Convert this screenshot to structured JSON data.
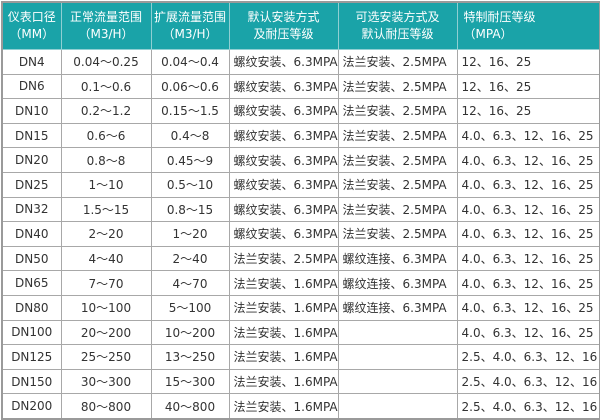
{
  "accent_color": "#1aa3a8",
  "headers": [
    [
      "仪表口径",
      "（MM）"
    ],
    [
      "正常流量范围",
      "（M3/H）"
    ],
    [
      "扩展流量范围",
      "（M3/H）"
    ],
    [
      "默认安装方式",
      "及耐压等级"
    ],
    [
      "可选安装方式及",
      "默认耐压等级"
    ],
    [
      "特制耐压等级",
      "（MPA）"
    ]
  ],
  "rows": [
    [
      "DN4",
      "0.04～0.25",
      "0.04～0.4",
      "螺纹安装、6.3MPA",
      "法兰安装、2.5MPA",
      "12、16、25"
    ],
    [
      "DN6",
      "0.1～0.6",
      "0.06～0.6",
      "螺纹安装、6.3MPA",
      "法兰安装、2.5MPA",
      "12、16、25"
    ],
    [
      "DN10",
      "0.2～1.2",
      "0.15～1.5",
      "螺纹安装、6.3MPA",
      "法兰安装、2.5MPA",
      "12、16、25"
    ],
    [
      "DN15",
      "0.6～6",
      "0.4～8",
      "螺纹安装、6.3MPA",
      "法兰安装、2.5MPA",
      "4.0、6.3、12、16、25"
    ],
    [
      "DN20",
      "0.8～8",
      "0.45～9",
      "螺纹安装、6.3MPA",
      "法兰安装、2.5MPA",
      "4.0、6.3、12、16、25"
    ],
    [
      "DN25",
      "1～10",
      "0.5～10",
      "螺纹安装、6.3MPA",
      "法兰安装、2.5MPA",
      "4.0、6.3、12、16、25"
    ],
    [
      "DN32",
      "1.5～15",
      "0.8～15",
      "螺纹安装、6.3MPA",
      "法兰安装、2.5MPA",
      "4.0、6.3、12、16、25"
    ],
    [
      "DN40",
      "2～20",
      "1～20",
      "螺纹安装、6.3MPA",
      "法兰安装、2.5MPA",
      "4.0、6.3、12、16、25"
    ],
    [
      "DN50",
      "4～40",
      "2～40",
      "法兰安装、2.5MPA",
      "螺纹连接、6.3MPA",
      "4.0、6.3、12、16、25"
    ],
    [
      "DN65",
      "7～70",
      "4～70",
      "法兰安装、1.6MPA",
      "螺纹连接、6.3MPA",
      "4.0、6.3、12、16、25"
    ],
    [
      "DN80",
      "10～100",
      "5～100",
      "法兰安装、1.6MPA",
      "螺纹连接、6.3MPA",
      "4.0、6.3、12、16、25"
    ],
    [
      "DN100",
      "20～200",
      "10～200",
      "法兰安装、1.6MPA",
      "",
      "4.0、6.3、12、16、25"
    ],
    [
      "DN125",
      "25～250",
      "13～250",
      "法兰安装、1.6MPA",
      "",
      "2.5、4.0、6.3、12、16"
    ],
    [
      "DN150",
      "30～300",
      "15～300",
      "法兰安装、1.6MPA",
      "",
      "2.5、4.0、6.3、12、16"
    ],
    [
      "DN200",
      "80～800",
      "40～800",
      "法兰安装、1.6MPA",
      "",
      "2.5、4.0、6.3、12、16"
    ]
  ]
}
